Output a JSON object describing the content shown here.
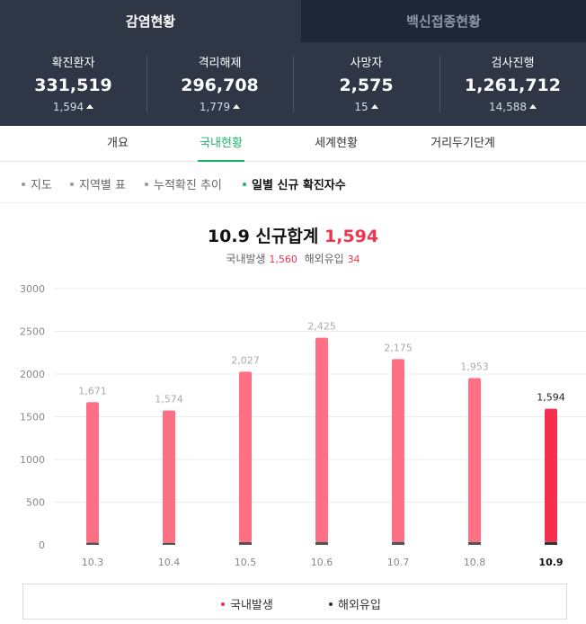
{
  "top_tabs": {
    "active": "감염현황",
    "inactive": "백신접종현황"
  },
  "stats": [
    {
      "label": "확진환자",
      "value": "331,519",
      "delta": "1,594"
    },
    {
      "label": "격리해제",
      "value": "296,708",
      "delta": "1,779"
    },
    {
      "label": "사망자",
      "value": "2,575",
      "delta": "15"
    },
    {
      "label": "검사진행",
      "value": "1,261,712",
      "delta": "14,588"
    }
  ],
  "subnav": [
    "개요",
    "국내현황",
    "세계현황",
    "거리두기단계"
  ],
  "subnav_active_index": 1,
  "view_menu": [
    "지도",
    "지역별 표",
    "누적확진 추이",
    "일별 신규 확진자수"
  ],
  "view_menu_active_index": 3,
  "heading": {
    "date": "10.9",
    "label": "신규합계",
    "total": "1,594",
    "domestic_label": "국내발생",
    "domestic_value": "1,560",
    "overseas_label": "해외유입",
    "overseas_value": "34"
  },
  "colors": {
    "domestic": "#ff7085",
    "domestic_highlight": "#f72f4f",
    "overseas": "#555555",
    "overseas_highlight": "#333333",
    "accent_green": "#1db46c",
    "panel_dark": "#2f3747"
  },
  "chart_data": {
    "type": "bar",
    "stacked": true,
    "categories": [
      "10.3",
      "10.4",
      "10.5",
      "10.6",
      "10.7",
      "10.8",
      "10.9"
    ],
    "series": [
      {
        "name": "국내발생",
        "values": [
          1645,
          1550,
          1995,
          2390,
          2140,
          1920,
          1560
        ]
      },
      {
        "name": "해외유입",
        "values": [
          26,
          24,
          32,
          35,
          35,
          33,
          34
        ]
      }
    ],
    "totals": [
      1671,
      1574,
      2027,
      2425,
      2175,
      1953,
      1594
    ],
    "total_labels": [
      "1,671",
      "1,574",
      "2,027",
      "2,425",
      "2,175",
      "1,953",
      "1,594"
    ],
    "highlight_index": 6,
    "yticks": [
      0,
      500,
      1000,
      1500,
      2000,
      2500,
      3000
    ],
    "ylim": [
      0,
      3000
    ],
    "grid": true,
    "legend_position": "bottom"
  }
}
